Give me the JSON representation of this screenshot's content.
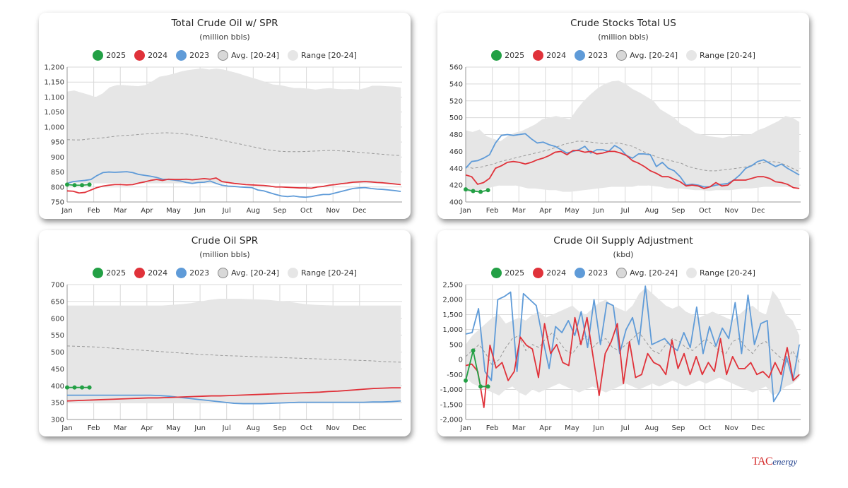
{
  "months": [
    "Jan",
    "Feb",
    "Mar",
    "Apr",
    "May",
    "Jun",
    "Jul",
    "Aug",
    "Sep",
    "Oct",
    "Nov",
    "Dec"
  ],
  "colors": {
    "c2025": "#23a045",
    "c2024": "#e0323a",
    "c2023": "#5f9bd8",
    "avg": "#999999",
    "range": "#e6e6e6"
  },
  "legend": [
    "2025",
    "2024",
    "2023",
    "Avg. [20-24]",
    "Range [20-24]"
  ],
  "logo": {
    "main": "TAC",
    "sub": "energy"
  },
  "chart_data": [
    {
      "type": "line",
      "title": "Total Crude Oil w/ SPR",
      "subtitle": "(million bbls)",
      "ylim": [
        750,
        1200
      ],
      "ytick_step": 50,
      "ytick_labels": [
        "750",
        "800",
        "850",
        "900",
        "950",
        "1,000",
        "1,050",
        "1,100",
        "1,150",
        "1,200"
      ],
      "xtick_labels": [
        "Jan",
        "Feb",
        "Mar",
        "Apr",
        "May",
        "Jun",
        "Jul",
        "Aug",
        "Sep",
        "Oct",
        "Nov",
        "Dec"
      ],
      "range_high": [
        1118,
        1122,
        1115,
        1108,
        1100,
        1112,
        1133,
        1140,
        1140,
        1138,
        1136,
        1140,
        1153,
        1168,
        1172,
        1178,
        1185,
        1190,
        1193,
        1196,
        1192,
        1195,
        1192,
        1186,
        1180,
        1172,
        1165,
        1158,
        1150,
        1142,
        1140,
        1135,
        1130,
        1130,
        1128,
        1125,
        1128,
        1130,
        1127,
        1126,
        1127,
        1125,
        1130,
        1138,
        1138,
        1136,
        1135,
        1132
      ],
      "range_low": [
        812,
        812,
        812,
        812,
        812,
        812,
        812,
        812,
        812,
        812,
        812,
        812,
        812,
        812,
        812,
        812,
        812,
        812,
        812,
        812,
        812,
        812,
        812,
        812,
        812,
        812,
        812,
        812,
        812,
        812,
        812,
        812,
        812,
        812,
        812,
        812,
        812,
        812,
        812,
        812,
        812,
        812,
        812,
        812,
        812,
        812,
        812,
        812
      ],
      "avg": [
        958,
        957,
        957,
        960,
        962,
        964,
        967,
        970,
        972,
        973,
        975,
        977,
        978,
        980,
        981,
        980,
        978,
        976,
        972,
        968,
        964,
        960,
        955,
        950,
        945,
        940,
        935,
        930,
        925,
        922,
        919,
        918,
        918,
        918,
        919,
        920,
        921,
        922,
        921,
        920,
        918,
        916,
        914,
        912,
        910,
        908,
        906,
        905
      ],
      "series": [
        {
          "name": "2024",
          "values": [
            787,
            786,
            780,
            782,
            790,
            798,
            803,
            806,
            808,
            808,
            807,
            808,
            813,
            817,
            822,
            825,
            822,
            826,
            825,
            825,
            826,
            824,
            826,
            828,
            826,
            830,
            818,
            815,
            812,
            810,
            808,
            807,
            806,
            805,
            803,
            800,
            800,
            799,
            798,
            797,
            797,
            796,
            800,
            802,
            806,
            808,
            811,
            813,
            816,
            817,
            818,
            817,
            815,
            814,
            812,
            810,
            808
          ]
        },
        {
          "name": "2023",
          "values": [
            812,
            818,
            820,
            822,
            825,
            838,
            848,
            850,
            849,
            850,
            851,
            848,
            842,
            839,
            836,
            832,
            826,
            825,
            823,
            820,
            815,
            812,
            815,
            816,
            820,
            812,
            806,
            803,
            802,
            800,
            799,
            798,
            790,
            787,
            781,
            775,
            770,
            768,
            770,
            767,
            766,
            768,
            772,
            775,
            775,
            780,
            785,
            790,
            795,
            797,
            798,
            795,
            793,
            792,
            790,
            788,
            785
          ]
        },
        {
          "name": "2025",
          "values": [
            808,
            806,
            806,
            808
          ]
        }
      ],
      "n_points_2024": 57,
      "n_points_2023": 57
    },
    {
      "type": "line",
      "title": "Crude Stocks Total US",
      "subtitle": "(million bbls)",
      "ylim": [
        400,
        560
      ],
      "ytick_step": 20,
      "ytick_labels": [
        "400",
        "420",
        "440",
        "460",
        "480",
        "500",
        "520",
        "540",
        "560"
      ],
      "xtick_labels": [
        "Jan",
        "Feb",
        "Mar",
        "Apr",
        "May",
        "Jun",
        "Jul",
        "Aug",
        "Sep",
        "Oct",
        "Nov",
        "Dec"
      ],
      "range_high": [
        485,
        483,
        486,
        478,
        475,
        472,
        478,
        482,
        484,
        488,
        492,
        498,
        500,
        502,
        500,
        498,
        510,
        520,
        528,
        535,
        540,
        543,
        544,
        540,
        534,
        530,
        525,
        520,
        510,
        505,
        500,
        492,
        488,
        482,
        480,
        478,
        477,
        476,
        478,
        478,
        480,
        480,
        485,
        488,
        492,
        496,
        502,
        500,
        495
      ],
      "range_low": [
        412,
        412,
        414,
        416,
        418,
        420,
        420,
        420,
        418,
        416,
        416,
        415,
        414,
        414,
        412,
        412,
        413,
        414,
        415,
        416,
        417,
        418,
        418,
        418,
        418,
        420,
        420,
        419,
        418,
        416,
        416,
        416,
        415,
        414,
        414,
        413,
        414,
        414,
        414,
        415,
        416,
        416,
        417,
        418,
        418,
        418,
        418,
        417,
        416
      ],
      "avg": [
        442,
        440,
        441,
        443,
        445,
        448,
        450,
        452,
        454,
        456,
        458,
        460,
        462,
        465,
        468,
        470,
        472,
        472,
        471,
        470,
        469,
        470,
        470,
        468,
        466,
        462,
        458,
        455,
        452,
        450,
        448,
        446,
        442,
        440,
        438,
        437,
        437,
        438,
        439,
        440,
        441,
        443,
        445,
        447,
        448,
        447,
        444,
        440,
        436
      ],
      "series": [
        {
          "name": "2024",
          "values": [
            432,
            430,
            421,
            423,
            428,
            440,
            443,
            447,
            448,
            447,
            445,
            447,
            450,
            452,
            455,
            459,
            460,
            456,
            461,
            461,
            459,
            460,
            457,
            458,
            460,
            460,
            458,
            455,
            449,
            446,
            442,
            437,
            434,
            430,
            430,
            427,
            424,
            419,
            420,
            419,
            416,
            418,
            423,
            419,
            420,
            426,
            426,
            426,
            428,
            430,
            430,
            428,
            424,
            423,
            421,
            417,
            416
          ]
        },
        {
          "name": "2023",
          "values": [
            440,
            448,
            449,
            452,
            456,
            470,
            479,
            480,
            479,
            480,
            481,
            475,
            470,
            471,
            468,
            466,
            462,
            458,
            460,
            462,
            466,
            458,
            462,
            462,
            460,
            467,
            463,
            455,
            452,
            457,
            457,
            456,
            442,
            447,
            440,
            437,
            430,
            420,
            421,
            420,
            418,
            418,
            420,
            421,
            422,
            426,
            432,
            440,
            443,
            448,
            450,
            446,
            442,
            445,
            440,
            436,
            432
          ]
        },
        {
          "name": "2025",
          "values": [
            415,
            413,
            412,
            414
          ]
        }
      ]
    },
    {
      "type": "line",
      "title": "Crude Oil SPR",
      "subtitle": "(million bbls)",
      "ylim": [
        300,
        700
      ],
      "ytick_step": 50,
      "ytick_labels": [
        "300",
        "350",
        "400",
        "450",
        "500",
        "550",
        "600",
        "650",
        "700"
      ],
      "xtick_labels": [
        "Jan",
        "Feb",
        "Mar",
        "Apr",
        "May",
        "Jun",
        "Jul",
        "Aug",
        "Sep",
        "Oct",
        "Nov",
        "Dec"
      ],
      "range_high": [
        638,
        638,
        638,
        638,
        638,
        638,
        638,
        638,
        638,
        638,
        638,
        640,
        642,
        645,
        650,
        655,
        658,
        658,
        658,
        657,
        656,
        655,
        652,
        650,
        646,
        642,
        640,
        639,
        638,
        638,
        638,
        638,
        638,
        638,
        638,
        638
      ],
      "range_low": [
        348,
        348,
        348,
        348,
        348,
        348,
        348,
        348,
        348,
        348,
        348,
        348,
        348,
        348,
        348,
        348,
        348,
        348,
        348,
        348,
        348,
        348,
        348,
        348,
        348,
        348,
        348,
        348,
        348,
        348,
        348,
        348,
        348,
        348,
        348,
        348
      ],
      "avg": [
        518,
        517,
        516,
        515,
        513,
        511,
        509,
        507,
        505,
        503,
        501,
        499,
        497,
        495,
        493,
        492,
        490,
        489,
        488,
        487,
        486,
        485,
        484,
        483,
        482,
        481,
        480,
        479,
        478,
        477,
        476,
        475,
        474,
        472,
        471,
        470
      ],
      "series": [
        {
          "name": "2024",
          "values": [
            355,
            356,
            357,
            358,
            359,
            360,
            361,
            362,
            363,
            364,
            364,
            365,
            366,
            367,
            368,
            369,
            370,
            370,
            371,
            372,
            373,
            374,
            375,
            376,
            377,
            378,
            379,
            380,
            381,
            383,
            384,
            386,
            388,
            390,
            392,
            393,
            394,
            394
          ]
        },
        {
          "name": "2023",
          "values": [
            372,
            372,
            372,
            372,
            372,
            372,
            372,
            372,
            372,
            372,
            371,
            369,
            366,
            363,
            360,
            357,
            354,
            351,
            348,
            347,
            347,
            347,
            348,
            349,
            350,
            351,
            351,
            351,
            351,
            351,
            351,
            351,
            351,
            352,
            352,
            353,
            355
          ]
        },
        {
          "name": "2025",
          "values": [
            395,
            395,
            395,
            395
          ]
        }
      ]
    },
    {
      "type": "line",
      "title": "Crude Oil Supply Adjustment",
      "subtitle": "(kbd)",
      "ylim": [
        -2000,
        2500
      ],
      "ytick_step": 500,
      "ytick_labels": [
        "-2,000",
        "-1,500",
        "-1,000",
        "-500",
        "0",
        "500",
        "1,000",
        "1,500",
        "2,000",
        "2,500"
      ],
      "xtick_labels": [
        "Jan",
        "Feb",
        "Mar",
        "Apr",
        "May",
        "Jun",
        "Jul",
        "Aug",
        "Sep",
        "Oct",
        "Nov",
        "Dec"
      ],
      "range_high": [
        500,
        800,
        1000,
        1200,
        1400,
        1500,
        1200,
        1300,
        1400,
        1300,
        1500,
        1600,
        1400,
        1500,
        1600,
        1700,
        1800,
        1600,
        1500,
        1700,
        1900,
        2000,
        1800,
        1700,
        1600,
        1800,
        2200,
        2400,
        2200,
        2000,
        1800,
        1700,
        1800,
        1600,
        1500,
        1400,
        1500,
        1600,
        1500,
        1400,
        1300,
        1500,
        1700,
        1800,
        1600,
        1500,
        2300,
        2000,
        1500,
        1300,
        800
      ],
      "range_low": [
        -600,
        -800,
        -900,
        -1000,
        -1100,
        -1200,
        -1000,
        -900,
        -1100,
        -1200,
        -1000,
        -1100,
        -1000,
        -900,
        -800,
        -900,
        -1000,
        -1100,
        -1000,
        -900,
        -1000,
        -1100,
        -1000,
        -900,
        -800,
        -900,
        -1000,
        -900,
        -800,
        -900,
        -800,
        -700,
        -800,
        -900,
        -800,
        -700,
        -800,
        -700,
        -600,
        -700,
        -800,
        -900,
        -1000,
        -1100,
        -1000,
        -900,
        -1200,
        -1100,
        -900,
        -800,
        -600
      ],
      "avg": [
        100,
        300,
        500,
        200,
        -200,
        0,
        400,
        700,
        800,
        300,
        500,
        400,
        700,
        900,
        600,
        300,
        200,
        500,
        800,
        400,
        600,
        700,
        400,
        300,
        500,
        700,
        900,
        600,
        300,
        200,
        500,
        700,
        600,
        400,
        300,
        500,
        700,
        500,
        300,
        200,
        600,
        700,
        400,
        200,
        500,
        600,
        300,
        100,
        -100,
        300,
        -100
      ],
      "series": [
        {
          "name": "2024",
          "values": [
            -200,
            -150,
            -400,
            -1600,
            480,
            -280,
            -100,
            -700,
            -400,
            750,
            480,
            350,
            -600,
            1200,
            200,
            500,
            -100,
            -200,
            1400,
            500,
            1400,
            100,
            -1200,
            200,
            600,
            1200,
            -800,
            600,
            -600,
            -500,
            200,
            -100,
            -200,
            -500,
            650,
            -300,
            200,
            -500,
            100,
            -500,
            -100,
            -400,
            700,
            -500,
            100,
            -300,
            -300,
            -100,
            -500,
            -400,
            -600,
            -100,
            -500,
            400,
            -700,
            -500
          ],
          "xstart": 0
        },
        {
          "name": "2023",
          "values": [
            850,
            900,
            1700,
            -400,
            -700,
            2000,
            2100,
            2250,
            -400,
            2200,
            2000,
            1800,
            700,
            -300,
            1100,
            900,
            1300,
            800,
            1600,
            400,
            2000,
            500,
            1900,
            1800,
            200,
            1000,
            1400,
            500,
            2450,
            500,
            600,
            700,
            450,
            300,
            900,
            400,
            1750,
            200,
            1100,
            450,
            1050,
            700,
            1900,
            200,
            2150,
            500,
            1200,
            1300,
            -1400,
            -1050,
            100,
            -700,
            500
          ],
          "xstart": 0
        },
        {
          "name": "2025",
          "values": [
            -700,
            300,
            -900,
            -900
          ]
        }
      ]
    }
  ]
}
